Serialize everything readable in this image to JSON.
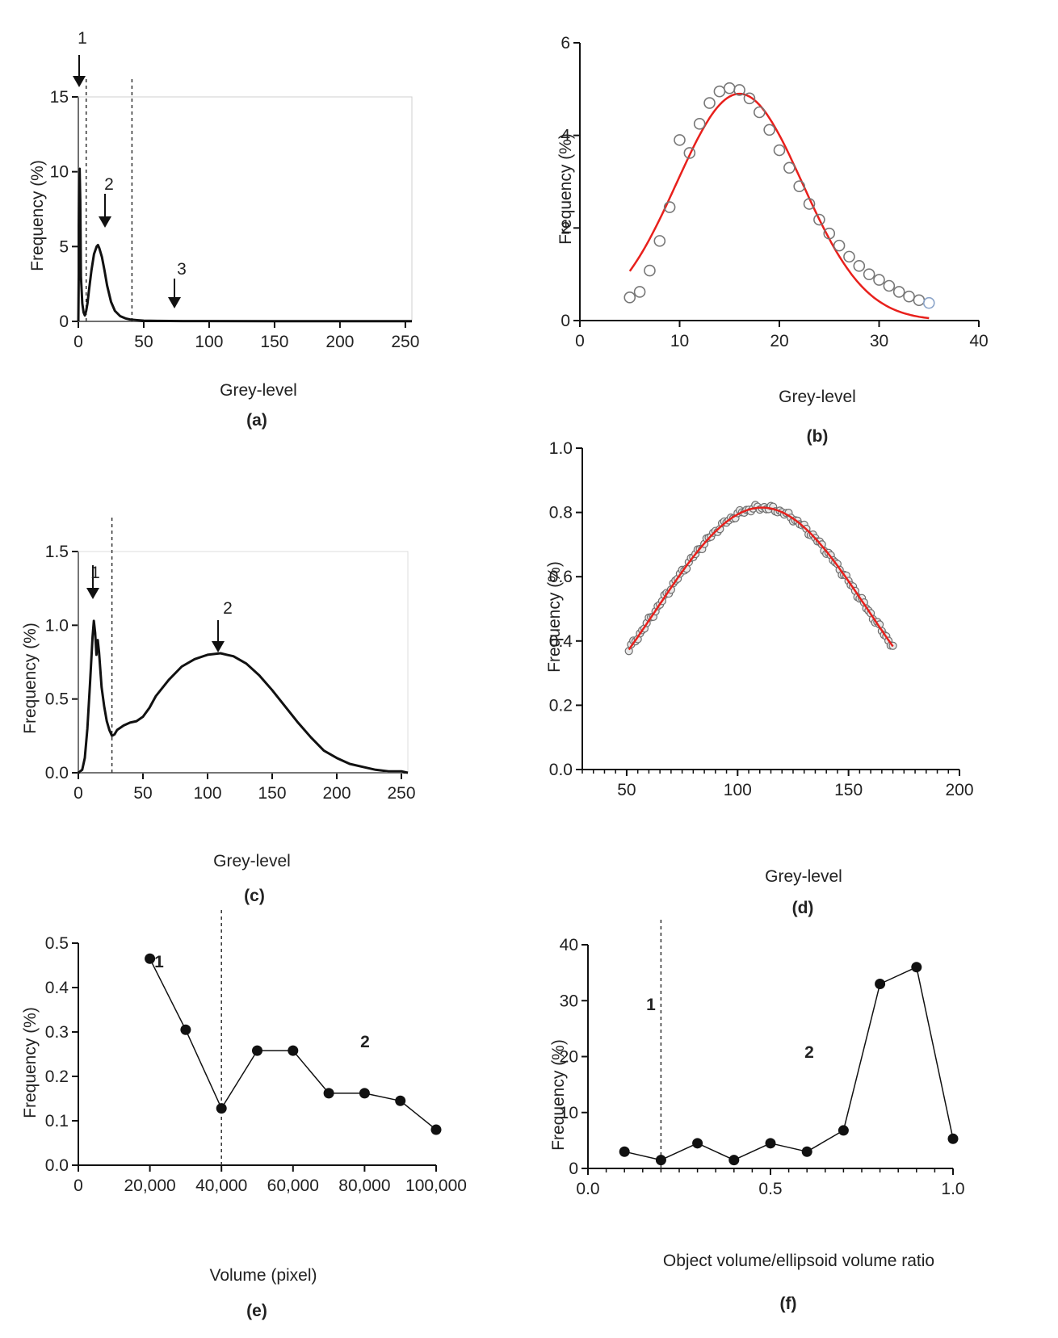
{
  "chart_data": [
    {
      "id": "a",
      "type": "line",
      "panel_label": "(a)",
      "xlabel": "Grey-level",
      "ylabel": "Frequency (%)",
      "xlim": [
        0,
        255
      ],
      "ylim": [
        0,
        15
      ],
      "xticks": [
        0,
        50,
        100,
        150,
        200,
        250
      ],
      "xtick_labels": [
        "0",
        "50",
        "100",
        "150",
        "200",
        "250"
      ],
      "yticks": [
        0,
        5,
        10,
        15
      ],
      "ytick_labels": [
        "0",
        "5",
        "10",
        "15"
      ],
      "thresholds": [
        6,
        41
      ],
      "annotations": [
        {
          "text": "1",
          "x": 2,
          "y": 15.5,
          "arrow": true
        },
        {
          "text": "2",
          "x": 19,
          "y": 6.4,
          "arrow": true
        },
        {
          "text": "3",
          "x": 73,
          "y": 0.9,
          "arrow": true
        }
      ],
      "series": [
        {
          "name": "histogram",
          "x": [
            0,
            1,
            1.5,
            2,
            3,
            4,
            5,
            6,
            7,
            8,
            10,
            12,
            14,
            15,
            16,
            18,
            20,
            22,
            25,
            28,
            32,
            36,
            40,
            45,
            50,
            60,
            80,
            100,
            150,
            200,
            255
          ],
          "y": [
            0,
            10.2,
            8,
            3,
            1.2,
            0.6,
            0.4,
            0.7,
            1.2,
            2,
            3.4,
            4.5,
            5,
            5.1,
            4.9,
            4.3,
            3.4,
            2.4,
            1.3,
            0.7,
            0.35,
            0.2,
            0.12,
            0.08,
            0.05,
            0.03,
            0.02,
            0.02,
            0.01,
            0.01,
            0.01
          ]
        }
      ]
    },
    {
      "id": "b",
      "type": "scatter",
      "panel_label": "(b)",
      "xlabel": "Grey-level",
      "ylabel": "Frequency (%)",
      "xlim": [
        0,
        40
      ],
      "ylim": [
        0,
        6
      ],
      "xticks": [
        0,
        10,
        20,
        30,
        40
      ],
      "xtick_labels": [
        "0",
        "10",
        "20",
        "30",
        "40"
      ],
      "yticks": [
        0,
        2,
        4,
        6
      ],
      "ytick_labels": [
        "0",
        "2",
        "4",
        "6"
      ],
      "series": [
        {
          "name": "observed",
          "x": [
            5,
            6,
            7,
            8,
            9,
            10,
            11,
            12,
            13,
            14,
            15,
            16,
            17,
            18,
            19,
            20,
            21,
            22,
            23,
            24,
            25,
            26,
            27,
            28,
            29,
            30,
            31,
            32,
            33,
            34,
            35
          ],
          "y": [
            0.5,
            0.62,
            1.08,
            1.72,
            2.45,
            3.9,
            3.62,
            4.25,
            4.7,
            4.95,
            5.02,
            4.98,
            4.8,
            4.5,
            4.12,
            3.68,
            3.3,
            2.9,
            2.52,
            2.18,
            1.88,
            1.62,
            1.38,
            1.18,
            1.0,
            0.88,
            0.75,
            0.62,
            0.52,
            0.44,
            0.38
          ]
        },
        {
          "name": "fit",
          "kind": "gaussian",
          "amplitude": 4.9,
          "mean": 16,
          "sd": 6.3,
          "x_range": [
            5,
            35
          ]
        }
      ]
    },
    {
      "id": "c",
      "type": "line",
      "panel_label": "(c)",
      "xlabel": "Grey-level",
      "ylabel": "Frequency (%)",
      "xlim": [
        0,
        255
      ],
      "ylim": [
        0,
        1.5
      ],
      "xticks": [
        0,
        50,
        100,
        150,
        200,
        250
      ],
      "xtick_labels": [
        "0",
        "50",
        "100",
        "150",
        "200",
        "250"
      ],
      "yticks": [
        0,
        0.5,
        1.0,
        1.5
      ],
      "ytick_labels": [
        "0.0",
        "0.5",
        "1.0",
        "1.5"
      ],
      "thresholds": [
        26
      ],
      "annotations": [
        {
          "text": "1",
          "x": 12,
          "y": 1.22,
          "arrow": true
        },
        {
          "text": "2",
          "x": 106,
          "y": 0.99,
          "arrow": true
        }
      ],
      "series": [
        {
          "name": "histogram",
          "x": [
            0,
            3,
            5,
            7,
            9,
            11,
            12,
            13,
            14,
            15,
            16,
            17,
            18,
            20,
            22,
            24,
            26,
            28,
            30,
            35,
            40,
            45,
            50,
            55,
            60,
            70,
            80,
            90,
            100,
            110,
            115,
            120,
            130,
            140,
            150,
            160,
            170,
            180,
            190,
            200,
            210,
            220,
            230,
            240,
            250,
            255
          ],
          "y": [
            0,
            0.02,
            0.1,
            0.3,
            0.6,
            0.92,
            1.03,
            0.95,
            0.8,
            0.9,
            0.82,
            0.7,
            0.58,
            0.45,
            0.35,
            0.29,
            0.25,
            0.26,
            0.29,
            0.32,
            0.34,
            0.35,
            0.38,
            0.44,
            0.52,
            0.63,
            0.72,
            0.77,
            0.8,
            0.81,
            0.8,
            0.79,
            0.74,
            0.66,
            0.56,
            0.45,
            0.34,
            0.24,
            0.15,
            0.1,
            0.06,
            0.04,
            0.02,
            0.01,
            0.01,
            0.0
          ]
        }
      ]
    },
    {
      "id": "d",
      "type": "scatter",
      "panel_label": "(d)",
      "xlabel": "Grey-level",
      "ylabel": "Frequency (%)",
      "xlim": [
        30,
        200
      ],
      "ylim": [
        0,
        1.0
      ],
      "xticks": [
        50,
        100,
        150,
        200
      ],
      "xtick_labels": [
        "50",
        "100",
        "150",
        "200"
      ],
      "yticks": [
        0,
        0.2,
        0.4,
        0.6,
        0.8,
        1.0
      ],
      "ytick_labels": [
        "0.0",
        "0.2",
        "0.4",
        "0.6",
        "0.8",
        "1.0"
      ],
      "series": [
        {
          "name": "observed",
          "kind": "dense",
          "x_range": [
            51,
            170
          ],
          "step": 1,
          "peak_x": 112,
          "peak_y": 0.81,
          "note": "one point per grey-level, closely following the fit"
        },
        {
          "name": "fit",
          "kind": "gaussian",
          "amplitude": 0.815,
          "mean": 111,
          "sd": 48,
          "x_range": [
            51,
            170
          ]
        }
      ]
    },
    {
      "id": "e",
      "type": "line",
      "panel_label": "(e)",
      "xlabel": "Volume (pixel)",
      "ylabel": "Frequency (%)",
      "xlim": [
        0,
        100000
      ],
      "ylim": [
        0,
        0.5
      ],
      "xticks": [
        0,
        20000,
        40000,
        60000,
        80000,
        100000
      ],
      "xtick_labels": [
        "0",
        "20,000",
        "40,000",
        "60,000",
        "80,000",
        "100,000"
      ],
      "yticks": [
        0,
        0.1,
        0.2,
        0.3,
        0.4,
        0.5
      ],
      "ytick_labels": [
        "0.0",
        "0.1",
        "0.2",
        "0.3",
        "0.4",
        "0.5"
      ],
      "thresholds": [
        40000
      ],
      "region_labels": [
        {
          "text": "1",
          "x": 20000,
          "y": 0.56
        },
        {
          "text": "2",
          "x": 75000,
          "y": 0.41
        }
      ],
      "series": [
        {
          "name": "frequency",
          "x": [
            20000,
            30000,
            40000,
            50000,
            60000,
            70000,
            80000,
            90000,
            100000
          ],
          "y": [
            0.465,
            0.305,
            0.128,
            0.258,
            0.258,
            0.162,
            0.162,
            0.145,
            0.08
          ]
        }
      ]
    },
    {
      "id": "f",
      "type": "line",
      "panel_label": "(f)",
      "xlabel": "Object volume/ellipsoid volume ratio",
      "ylabel": "Frequency (%)",
      "xlim": [
        0,
        1.0
      ],
      "ylim": [
        0,
        40
      ],
      "xticks": [
        0,
        0.5,
        1.0
      ],
      "xtick_labels": [
        "0.0",
        "0.5",
        "1.0"
      ],
      "yticks": [
        0,
        10,
        20,
        30,
        40
      ],
      "ytick_labels": [
        "0",
        "10",
        "20",
        "30",
        "40"
      ],
      "thresholds": [
        0.2
      ],
      "region_labels": [
        {
          "text": "1",
          "x": 0.07,
          "y": 36.5
        },
        {
          "text": "2",
          "x": 0.48,
          "y": 30.5
        }
      ],
      "series": [
        {
          "name": "frequency",
          "x": [
            0.1,
            0.2,
            0.3,
            0.4,
            0.5,
            0.6,
            0.7,
            0.8,
            0.9,
            1.0
          ],
          "y": [
            3,
            1.5,
            4.5,
            1.5,
            4.5,
            3,
            6.8,
            33,
            36,
            5.3
          ]
        }
      ]
    }
  ],
  "colors": {
    "axis": "#111111",
    "line": "#111111",
    "fit": "#e8201c",
    "marker_edge": "#777777",
    "marker_edge_end": "#8aa3c8",
    "dot": "#111111",
    "threshold": "#333333"
  }
}
